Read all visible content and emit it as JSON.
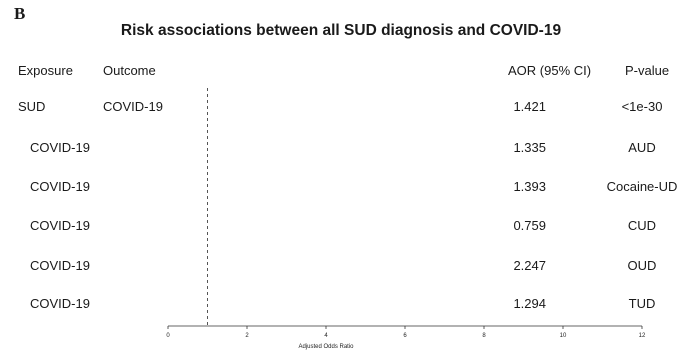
{
  "panel_label": "B",
  "chart_data": {
    "type": "forest",
    "title": "Risk associations between all SUD diagnosis and COVID-19",
    "columns": {
      "exposure": "Exposure",
      "outcome": "Outcome",
      "aor": "AOR (95% CI)",
      "pvalue": "P-value"
    },
    "rows": [
      {
        "exposure": "SUD",
        "outcome": "COVID-19",
        "aor": "1.421",
        "pvalue": "<1e-30"
      },
      {
        "exposure": "COVID-19",
        "outcome": "",
        "aor": "1.335",
        "pvalue": "AUD"
      },
      {
        "exposure": "COVID-19",
        "outcome": "",
        "aor": "1.393",
        "pvalue": "Cocaine-UD"
      },
      {
        "exposure": "COVID-19",
        "outcome": "",
        "aor": "0.759",
        "pvalue": "CUD"
      },
      {
        "exposure": "COVID-19",
        "outcome": "",
        "aor": "2.247",
        "pvalue": "OUD"
      },
      {
        "exposure": "COVID-19",
        "outcome": "",
        "aor": "1.294",
        "pvalue": "TUD"
      }
    ],
    "xlabel": "Adjusted Odds Ratio",
    "xlim": [
      0,
      12
    ],
    "x_ticks": [
      0,
      2,
      4,
      6,
      8,
      10,
      12
    ],
    "reference_line": 1
  }
}
